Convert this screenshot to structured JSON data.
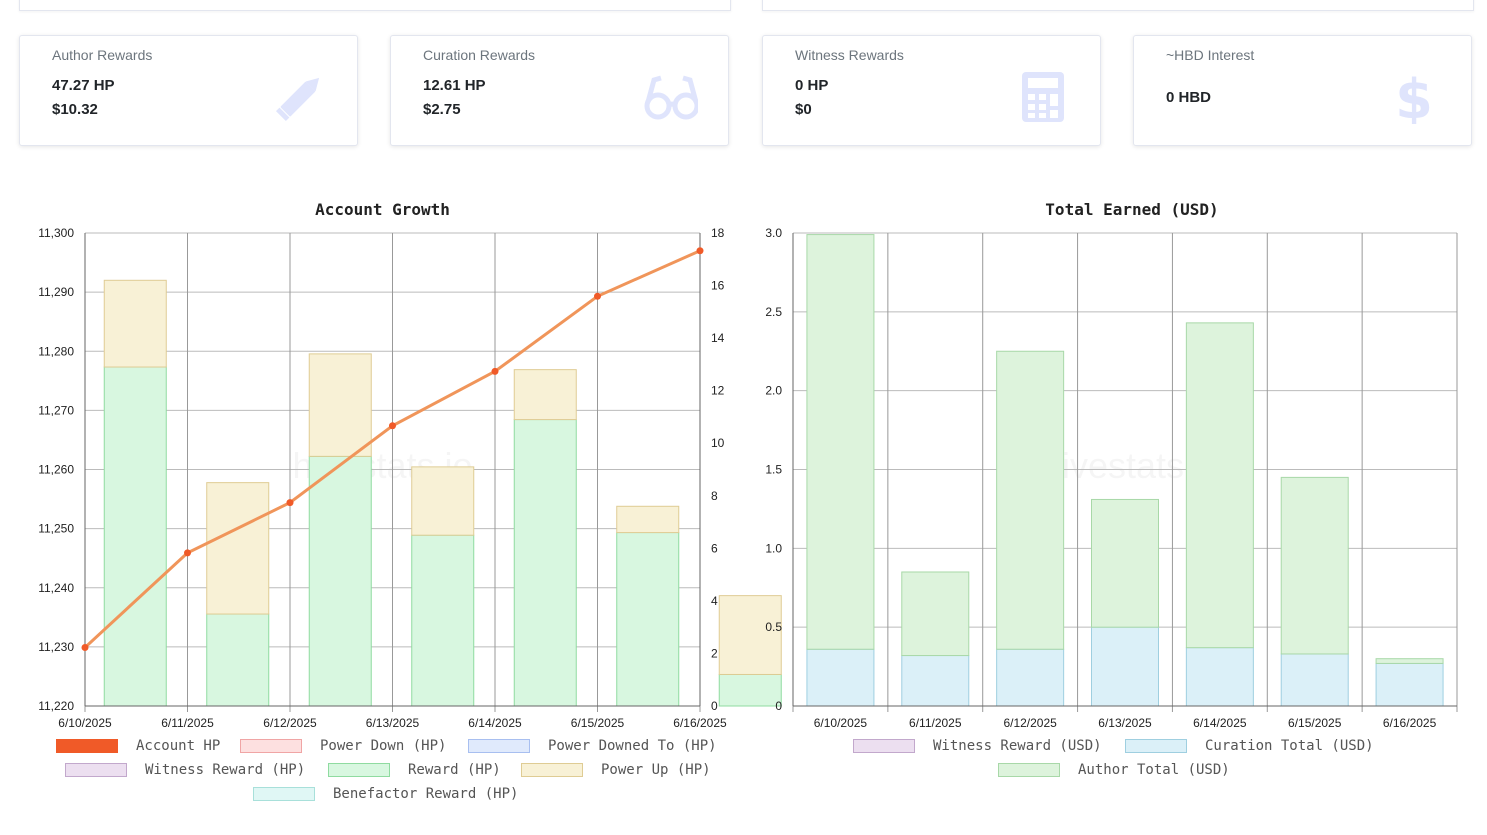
{
  "cards": [
    {
      "title": "Author Rewards",
      "values": [
        "47.27 HP",
        "$10.32"
      ],
      "icon": "pencil-icon"
    },
    {
      "title": "Curation Rewards",
      "values": [
        "12.61 HP",
        "$2.75"
      ],
      "icon": "glasses-icon"
    },
    {
      "title": "Witness Rewards",
      "values": [
        "0 HP",
        "$0"
      ],
      "icon": "calculator-icon"
    },
    {
      "title": "~HBD Interest",
      "values": [
        "0 HBD"
      ],
      "icon": "dollar-icon"
    }
  ],
  "colors": {
    "account_hp": "#f05a28",
    "account_line": "#f0955a",
    "reward_fill": "#d8f7e0",
    "reward_border": "#8fdba0",
    "power_up_fill": "#f8f1d6",
    "power_up_border": "#dfcc94",
    "author_fill": "#ddf3dc",
    "author_border": "#a8d8a8",
    "curation_fill": "#dbf0f8",
    "curation_border": "#9fcfe0",
    "icon": "#dfe4fc",
    "watermark": "hivestats.io"
  },
  "chart_data": [
    {
      "type": "bar",
      "title": "Account Growth",
      "categories": [
        "6/10/2025",
        "6/11/2025",
        "6/12/2025",
        "6/13/2025",
        "6/14/2025",
        "6/15/2025",
        "6/16/2025"
      ],
      "stacked": true,
      "ylim_left": [
        11220,
        11300
      ],
      "yticks_left": [
        "11,220",
        "11,230",
        "11,240",
        "11,250",
        "11,260",
        "11,270",
        "11,280",
        "11,290",
        "11,300"
      ],
      "ylim_right": [
        0,
        18
      ],
      "yticks_right": [
        "0",
        "2",
        "4",
        "6",
        "8",
        "10",
        "12",
        "14",
        "16",
        "18"
      ],
      "grid": true,
      "series": [
        {
          "name": "Account HP",
          "type": "line",
          "axis": "left",
          "values": [
            11229.9,
            11245.9,
            11254.4,
            11267.4,
            11276.6,
            11289.3,
            11297.0
          ]
        },
        {
          "name": "Power Down (HP)",
          "type": "bar",
          "axis": "right",
          "values": [
            0,
            0,
            0,
            0,
            0,
            0,
            0
          ]
        },
        {
          "name": "Power Downed To (HP)",
          "type": "bar",
          "axis": "right",
          "values": [
            0,
            0,
            0,
            0,
            0,
            0,
            0
          ]
        },
        {
          "name": "Witness Reward (HP)",
          "type": "bar",
          "axis": "right",
          "values": [
            0,
            0,
            0,
            0,
            0,
            0,
            0
          ]
        },
        {
          "name": "Reward (HP)",
          "type": "bar",
          "axis": "right",
          "values": [
            12.9,
            3.5,
            9.5,
            6.5,
            10.9,
            6.6,
            1.2
          ]
        },
        {
          "name": "Power Up (HP)",
          "type": "bar",
          "axis": "right",
          "values": [
            3.3,
            5.0,
            3.9,
            2.6,
            1.9,
            1.0,
            3.0
          ]
        },
        {
          "name": "Benefactor Reward (HP)",
          "type": "bar",
          "axis": "right",
          "values": [
            0,
            0,
            0,
            0,
            0,
            0,
            0
          ]
        }
      ],
      "legend": "bottom",
      "watermark": "hivestats.io"
    },
    {
      "type": "bar",
      "title": "Total Earned (USD)",
      "categories": [
        "6/10/2025",
        "6/11/2025",
        "6/12/2025",
        "6/13/2025",
        "6/14/2025",
        "6/15/2025",
        "6/16/2025"
      ],
      "stacked": true,
      "ylim": [
        0,
        3.0
      ],
      "yticks": [
        "0",
        "0.5",
        "1.0",
        "1.5",
        "2.0",
        "2.5",
        "3.0"
      ],
      "grid": true,
      "series": [
        {
          "name": "Witness Reward (USD)",
          "values": [
            0,
            0,
            0,
            0,
            0,
            0,
            0
          ]
        },
        {
          "name": "Curation Total (USD)",
          "values": [
            0.36,
            0.32,
            0.36,
            0.5,
            0.37,
            0.33,
            0.27
          ]
        },
        {
          "name": "Author Total (USD)",
          "values": [
            2.63,
            0.53,
            1.89,
            0.81,
            2.06,
            1.12,
            0.03
          ]
        }
      ],
      "legend": "bottom",
      "watermark": "hivestats.io"
    }
  ]
}
